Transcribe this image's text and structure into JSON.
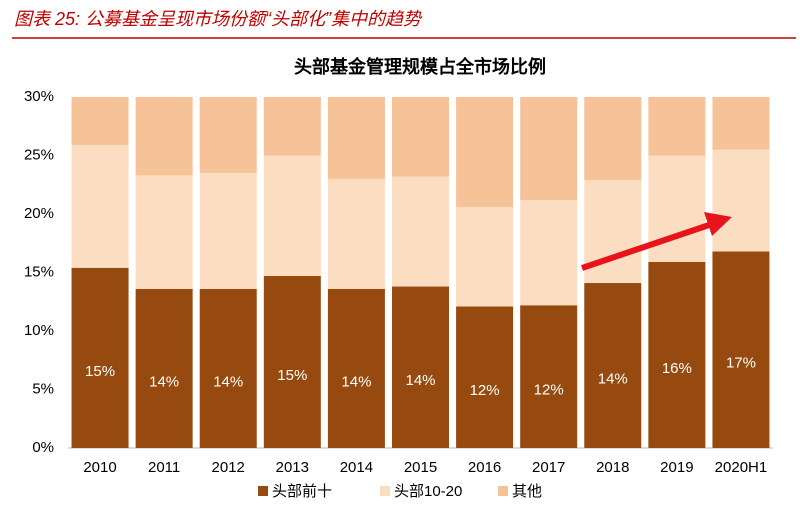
{
  "chart_data": {
    "type": "stacked_bar",
    "caption": "图表 25: 公募基金呈现市场份额“头部化”集中的趋势",
    "title": "头部基金管理规模占全市场比例",
    "categories": [
      "2010",
      "2011",
      "2012",
      "2013",
      "2014",
      "2015",
      "2016",
      "2017",
      "2018",
      "2019",
      "2020H1"
    ],
    "series": [
      {
        "name": "头部前十",
        "color": "#974a0f",
        "values": [
          15.4,
          13.6,
          13.6,
          14.7,
          13.6,
          13.8,
          12.1,
          12.2,
          14.1,
          15.9,
          16.8
        ],
        "value_labels": [
          "15%",
          "14%",
          "14%",
          "15%",
          "14%",
          "14%",
          "12%",
          "12%",
          "14%",
          "16%",
          "17%"
        ]
      },
      {
        "name": "头部10-20",
        "color": "#fbddc2",
        "values": [
          10.5,
          9.7,
          9.9,
          10.3,
          9.4,
          9.4,
          8.5,
          9.0,
          8.8,
          9.1,
          8.7
        ]
      },
      {
        "name": "其他",
        "color": "#f6c298",
        "values": [
          4.1,
          6.7,
          6.5,
          5.0,
          7.0,
          6.8,
          9.4,
          8.8,
          7.1,
          5.0,
          4.5
        ]
      }
    ],
    "ylim": [
      0,
      30
    ],
    "yticks": [
      {
        "value": 0,
        "label": "0%"
      },
      {
        "value": 5,
        "label": "5%"
      },
      {
        "value": 10,
        "label": "10%"
      },
      {
        "value": 15,
        "label": "15%"
      },
      {
        "value": 20,
        "label": "20%"
      },
      {
        "value": 25,
        "label": "25%"
      },
      {
        "value": 30,
        "label": "30%"
      }
    ],
    "legend": "bottom"
  }
}
